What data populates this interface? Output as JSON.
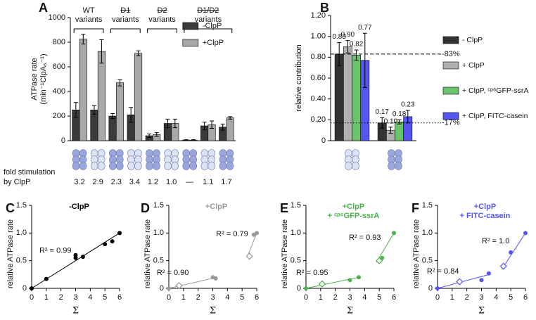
{
  "chart_data": [
    {
      "type": "bar",
      "panel": "A",
      "ylabel": [
        "ATPase rate",
        "(min⁻¹ClpA₆⁻¹)"
      ],
      "categories": [
        null,
        null,
        null,
        null,
        null,
        null,
        null,
        null,
        null
      ],
      "series": [
        {
          "name": "-ClpP",
          "color": "#3a3a3a",
          "values": [
            250,
            250,
            200,
            210,
            40,
            140,
            5,
            120,
            110
          ],
          "errors": [
            60,
            35,
            20,
            60,
            15,
            35,
            3,
            30,
            25
          ]
        },
        {
          "name": "+ClpP",
          "color": "#a8a8a8",
          "values": [
            825,
            725,
            470,
            710,
            50,
            140,
            5,
            130,
            185
          ],
          "errors": [
            40,
            95,
            25,
            20,
            15,
            35,
            3,
            30,
            10
          ]
        }
      ],
      "ylim": [
        0,
        1000
      ],
      "yticks": [
        0,
        200,
        400,
        600,
        800,
        1000
      ],
      "legend": "upper right",
      "groups": [
        {
          "lines": [
            "WT",
            "variants"
          ],
          "size": 2,
          "strike": false
        },
        {
          "lines": [
            "D1",
            "variants"
          ],
          "size": 2,
          "strike": true
        },
        {
          "lines": [
            "D2",
            "variants"
          ],
          "size": 2,
          "strike": true
        },
        {
          "lines": [
            "D1/D2",
            "variants"
          ],
          "size": 3,
          "strike": true
        }
      ],
      "fold_label": [
        "fold stimulation",
        "by ClpP"
      ],
      "fold_stimulation": [
        "3.2",
        "2.9",
        "2.3",
        "3.4",
        "1.2",
        "1.0",
        "—",
        "1.1",
        "1.7"
      ]
    },
    {
      "type": "bar",
      "panel": "B",
      "ylabel": [
        "relative contribution"
      ],
      "categories": [
        null,
        null
      ],
      "series": [
        {
          "name": "- ClpP",
          "color": "#333333",
          "values": [
            0.83,
            0.17
          ],
          "value_labels": [
            "0.83",
            "0.17"
          ],
          "errors": [
            0.11,
            0.05
          ]
        },
        {
          "name": "+ ClpP",
          "color": "#b0b0b0",
          "values": [
            0.9,
            0.1
          ],
          "value_labels": [
            "0.90",
            "0.10"
          ],
          "errors": [
            0.06,
            0.03
          ]
        },
        {
          "name": "+ ClpP, ᶜᵖ⁶GFP-ssrA",
          "color": "#6cc46a",
          "values": [
            0.82,
            0.18
          ],
          "value_labels": [
            "0.82",
            "0.18"
          ],
          "errors": [
            0.05,
            0.02
          ]
        },
        {
          "name": "+ ClpP, FITC-casein",
          "color": "#5555f0",
          "values": [
            0.77,
            0.23
          ],
          "value_labels": [
            "0.77",
            "0.23"
          ],
          "errors": [
            0.26,
            0.06
          ]
        }
      ],
      "ylim": [
        0,
        1.2
      ],
      "yticks": [
        0,
        {
          "value": 0.2,
          "label": "0.20"
        },
        {
          "value": 0.4,
          "label": "0.40"
        },
        {
          "value": 0.6,
          "label": "0.60"
        },
        {
          "value": 0.8,
          "label": "0.80"
        },
        {
          "value": 1,
          "label": "1.00"
        },
        {
          "value": 1.2,
          "label": "1.20"
        }
      ],
      "legend": "right",
      "reflines": [
        {
          "value": 0.83,
          "label": "-83%",
          "style": "dashed"
        },
        {
          "value": 0.17,
          "label": "-17%",
          "style": "dotted"
        }
      ]
    },
    {
      "type": "scatter",
      "panel": "C",
      "title": [
        "-ClpP"
      ],
      "color": "#000000",
      "x": [
        0,
        1,
        3,
        3,
        3.5,
        5,
        5.5,
        6
      ],
      "values": [
        0,
        0.17,
        0.55,
        0.6,
        0.57,
        0.8,
        0.85,
        1.0
      ],
      "open": [
        false,
        false,
        false,
        false,
        false,
        false,
        false,
        false
      ],
      "fits": [
        {
          "x": [
            0,
            6
          ],
          "values": [
            0,
            1
          ],
          "label": "R² = 0.99"
        }
      ],
      "xlim": [
        0,
        6
      ],
      "ylim": [
        0,
        1.5
      ],
      "xticks": [
        0,
        1,
        2,
        3,
        4,
        5,
        6
      ],
      "yticks": [
        0,
        0.5,
        {
          "value": 1,
          "label": "1.0"
        },
        1.5
      ],
      "xlabel": "Σ",
      "ylabel": "relative ATPase rate"
    },
    {
      "type": "scatter",
      "panel": "D",
      "title": [
        "+ClpP"
      ],
      "color": "#9a9a9a",
      "x": [
        0,
        0.7,
        3,
        3.2,
        5.5,
        5.8,
        6
      ],
      "values": [
        0,
        0.05,
        0.2,
        0.18,
        0.58,
        0.97,
        1.0
      ],
      "open": [
        false,
        true,
        false,
        false,
        true,
        false,
        false
      ],
      "fits": [
        {
          "x": [
            0,
            3.3
          ],
          "values": [
            0,
            0.2
          ],
          "label": "R² = 0.90"
        },
        {
          "x": [
            5.4,
            6
          ],
          "values": [
            0.6,
            1.0
          ],
          "label": "R² = 0.79"
        }
      ],
      "xlim": [
        0,
        6
      ],
      "ylim": [
        0,
        1.5
      ],
      "xticks": [
        0,
        1,
        2,
        3,
        4,
        5,
        6
      ],
      "yticks": [
        0,
        0.5,
        {
          "value": 1,
          "label": "1.0"
        },
        1.5
      ],
      "xlabel": "Σ",
      "ylabel": "relative ATPase rate"
    },
    {
      "type": "scatter",
      "panel": "E",
      "title": [
        "+ClpP",
        "+ ᶜᵖ⁶GFP-ssrA"
      ],
      "color": "#4cb04c",
      "x": [
        0,
        1.1,
        3,
        3.6,
        5,
        5.2,
        6
      ],
      "values": [
        0,
        0.08,
        0.15,
        0.2,
        0.5,
        0.55,
        1.0
      ],
      "open": [
        false,
        true,
        false,
        false,
        true,
        false,
        false
      ],
      "fits": [
        {
          "x": [
            0,
            3.6
          ],
          "values": [
            0,
            0.2
          ],
          "label": "R² = 0.95"
        },
        {
          "x": [
            4.8,
            6
          ],
          "values": [
            0.47,
            1.0
          ],
          "label": "R² = 0.93"
        }
      ],
      "xlim": [
        0,
        6
      ],
      "ylim": [
        0,
        1.5
      ],
      "xticks": [
        0,
        1,
        2,
        3,
        4,
        5,
        6
      ],
      "yticks": [
        0,
        0.5,
        {
          "value": 1,
          "label": "1.0"
        },
        1.5
      ],
      "xlabel": "Σ",
      "ylabel": "relative ATPase rate"
    },
    {
      "type": "scatter",
      "panel": "F",
      "title": [
        "+ClpP",
        "+ FITC-casein"
      ],
      "color": "#5555f0",
      "x": [
        0,
        1.5,
        3,
        3.5,
        4.5,
        5,
        6
      ],
      "values": [
        0,
        0.12,
        0.15,
        0.27,
        0.4,
        0.65,
        1.0
      ],
      "open": [
        false,
        true,
        false,
        false,
        true,
        false,
        false
      ],
      "fits": [
        {
          "x": [
            0,
            3.5
          ],
          "values": [
            0,
            0.25
          ],
          "label": "R² = 0.84"
        },
        {
          "x": [
            4.4,
            6
          ],
          "values": [
            0.35,
            1.0
          ],
          "label": "R² = 1.0"
        }
      ],
      "xlim": [
        0,
        6
      ],
      "ylim": [
        0,
        1.5
      ],
      "xticks": [
        0,
        1,
        2,
        3,
        4,
        5,
        6
      ],
      "yticks": [
        0,
        0.5,
        {
          "value": 1,
          "label": "1.0"
        },
        1.5
      ],
      "xlabel": "Σ",
      "ylabel": "relative ATPase rate"
    }
  ]
}
